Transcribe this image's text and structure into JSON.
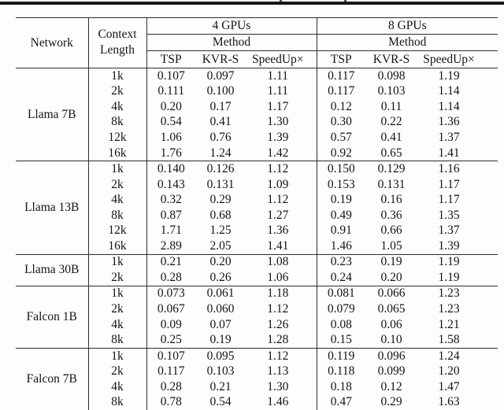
{
  "table": {
    "header": {
      "network_label": "Network",
      "context_label_line1": "Context",
      "context_label_line2": "Length",
      "group_labels": [
        "4 GPUs",
        "8 GPUs"
      ],
      "method_label": "Method",
      "method_columns": [
        "TSP",
        "KVR-S",
        "SpeedUp×"
      ]
    },
    "groups": [
      {
        "network": "Llama 7B",
        "rows": [
          {
            "context": "1k",
            "gpu4": [
              "0.107",
              "0.097",
              "1.11"
            ],
            "gpu8": [
              "0.117",
              "0.098",
              "1.19"
            ]
          },
          {
            "context": "2k",
            "gpu4": [
              "0.111",
              "0.100",
              "1.11"
            ],
            "gpu8": [
              "0.117",
              "0.103",
              "1.14"
            ]
          },
          {
            "context": "4k",
            "gpu4": [
              "0.20",
              "0.17",
              "1.17"
            ],
            "gpu8": [
              "0.12",
              "0.11",
              "1.14"
            ]
          },
          {
            "context": "8k",
            "gpu4": [
              "0.54",
              "0.41",
              "1.30"
            ],
            "gpu8": [
              "0.30",
              "0.22",
              "1.36"
            ]
          },
          {
            "context": "12k",
            "gpu4": [
              "1.06",
              "0.76",
              "1.39"
            ],
            "gpu8": [
              "0.57",
              "0.41",
              "1.37"
            ]
          },
          {
            "context": "16k",
            "gpu4": [
              "1.76",
              "1.24",
              "1.42"
            ],
            "gpu8": [
              "0.92",
              "0.65",
              "1.41"
            ]
          }
        ]
      },
      {
        "network": "Llama 13B",
        "rows": [
          {
            "context": "1k",
            "gpu4": [
              "0.140",
              "0.126",
              "1.12"
            ],
            "gpu8": [
              "0.150",
              "0.129",
              "1.16"
            ]
          },
          {
            "context": "2k",
            "gpu4": [
              "0.143",
              "0.131",
              "1.09"
            ],
            "gpu8": [
              "0.153",
              "0.131",
              "1.17"
            ]
          },
          {
            "context": "4k",
            "gpu4": [
              "0.32",
              "0.29",
              "1.12"
            ],
            "gpu8": [
              "0.19",
              "0.16",
              "1.17"
            ]
          },
          {
            "context": "8k",
            "gpu4": [
              "0.87",
              "0.68",
              "1.27"
            ],
            "gpu8": [
              "0.49",
              "0.36",
              "1.35"
            ]
          },
          {
            "context": "12k",
            "gpu4": [
              "1.71",
              "1.25",
              "1.36"
            ],
            "gpu8": [
              "0.91",
              "0.66",
              "1.37"
            ]
          },
          {
            "context": "16k",
            "gpu4": [
              "2.89",
              "2.05",
              "1.41"
            ],
            "gpu8": [
              "1.46",
              "1.05",
              "1.39"
            ]
          }
        ]
      },
      {
        "network": "Llama 30B",
        "rows": [
          {
            "context": "1k",
            "gpu4": [
              "0.21",
              "0.20",
              "1.08"
            ],
            "gpu8": [
              "0.23",
              "0.19",
              "1.19"
            ]
          },
          {
            "context": "2k",
            "gpu4": [
              "0.28",
              "0.26",
              "1.06"
            ],
            "gpu8": [
              "0.24",
              "0.20",
              "1.19"
            ]
          }
        ]
      },
      {
        "network": "Falcon 1B",
        "rows": [
          {
            "context": "1k",
            "gpu4": [
              "0.073",
              "0.061",
              "1.18"
            ],
            "gpu8": [
              "0.081",
              "0.066",
              "1.23"
            ]
          },
          {
            "context": "2k",
            "gpu4": [
              "0.067",
              "0.060",
              "1.12"
            ],
            "gpu8": [
              "0.079",
              "0.065",
              "1.23"
            ]
          },
          {
            "context": "4k",
            "gpu4": [
              "0.09",
              "0.07",
              "1.26"
            ],
            "gpu8": [
              "0.08",
              "0.06",
              "1.21"
            ]
          },
          {
            "context": "8k",
            "gpu4": [
              "0.25",
              "0.19",
              "1.28"
            ],
            "gpu8": [
              "0.15",
              "0.10",
              "1.58"
            ]
          }
        ]
      },
      {
        "network": "Falcon 7B",
        "rows": [
          {
            "context": "1k",
            "gpu4": [
              "0.107",
              "0.095",
              "1.12"
            ],
            "gpu8": [
              "0.119",
              "0.096",
              "1.24"
            ]
          },
          {
            "context": "2k",
            "gpu4": [
              "0.117",
              "0.103",
              "1.13"
            ],
            "gpu8": [
              "0.118",
              "0.099",
              "1.20"
            ]
          },
          {
            "context": "4k",
            "gpu4": [
              "0.28",
              "0.21",
              "1.30"
            ],
            "gpu8": [
              "0.18",
              "0.12",
              "1.47"
            ]
          },
          {
            "context": "8k",
            "gpu4": [
              "0.78",
              "0.54",
              "1.46"
            ],
            "gpu8": [
              "0.47",
              "0.29",
              "1.63"
            ]
          }
        ]
      }
    ]
  }
}
